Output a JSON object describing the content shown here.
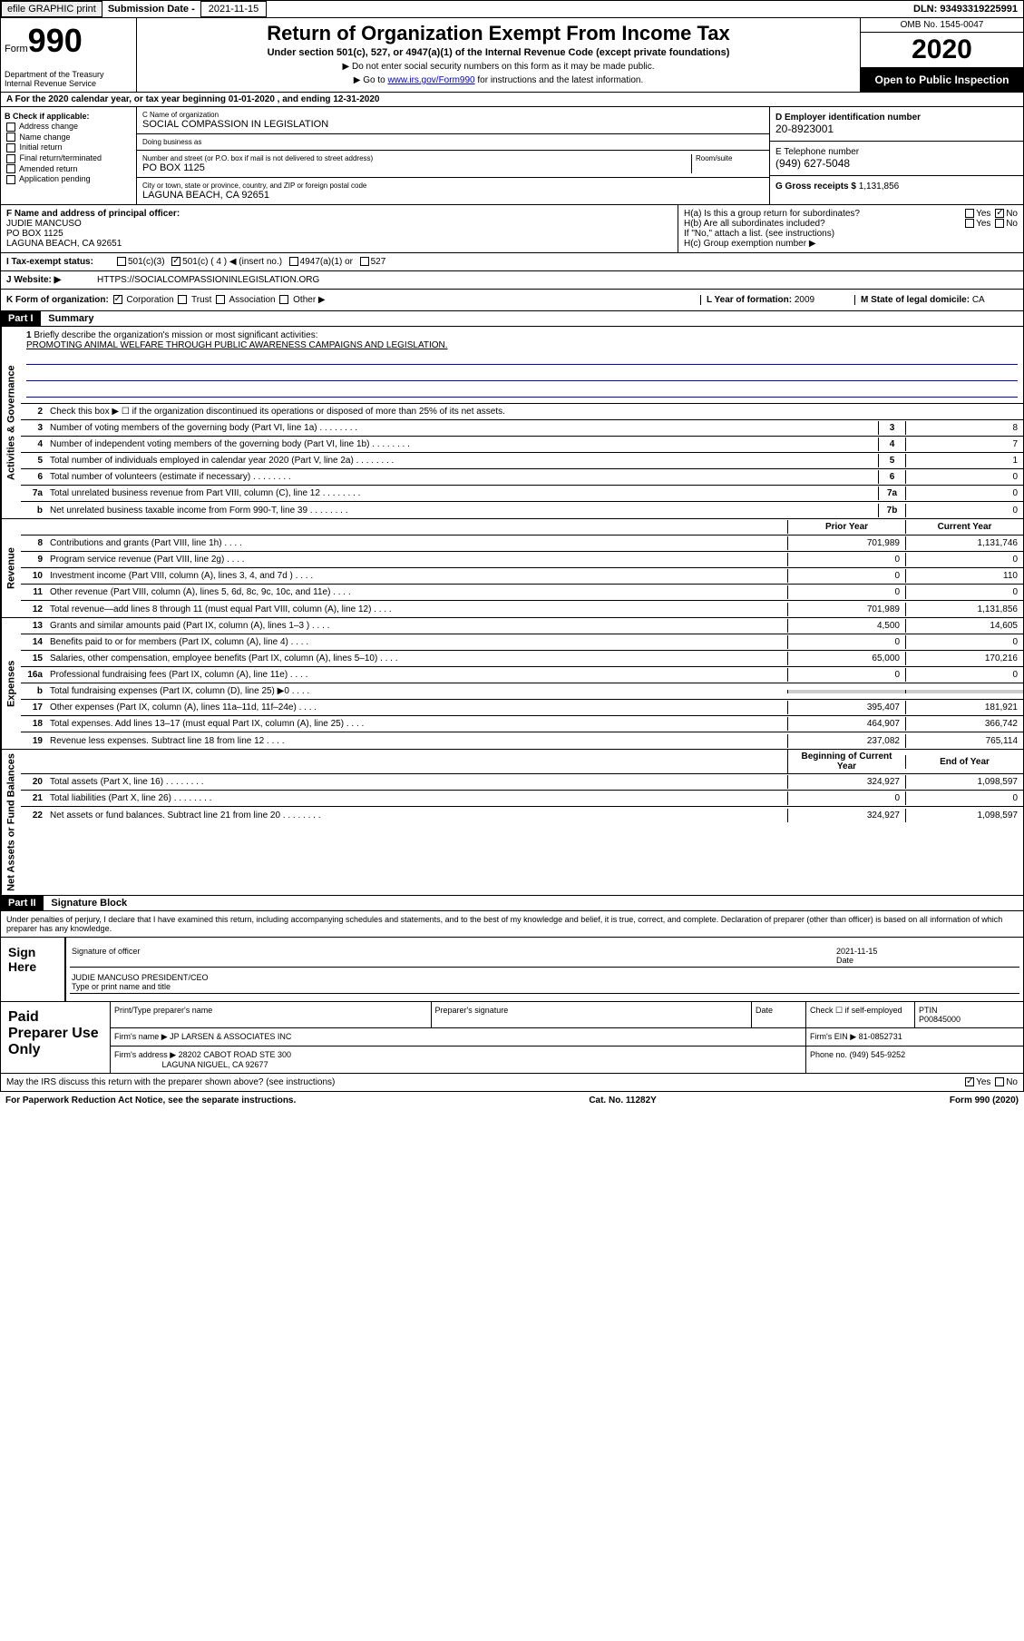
{
  "topbar": {
    "efile": "efile GRAPHIC print",
    "sub_label": "Submission Date - ",
    "sub_date": "2021-11-15",
    "dln": "DLN: 93493319225991"
  },
  "header": {
    "form_word": "Form",
    "form_no": "990",
    "dept": "Department of the Treasury\nInternal Revenue Service",
    "title": "Return of Organization Exempt From Income Tax",
    "subtitle": "Under section 501(c), 527, or 4947(a)(1) of the Internal Revenue Code (except private foundations)",
    "instr1": "Do not enter social security numbers on this form as it may be made public.",
    "instr2_pre": "Go to ",
    "instr2_link": "www.irs.gov/Form990",
    "instr2_post": " for instructions and the latest information.",
    "omb": "OMB No. 1545-0047",
    "year": "2020",
    "open": "Open to Public Inspection"
  },
  "section_a": "A For the 2020 calendar year, or tax year beginning 01-01-2020   , and ending 12-31-2020",
  "blockB": {
    "label": "B Check if applicable:",
    "items": [
      "Address change",
      "Name change",
      "Initial return",
      "Final return/terminated",
      "Amended return",
      "Application pending"
    ]
  },
  "blockC": {
    "name_label": "C Name of organization",
    "name": "SOCIAL COMPASSION IN LEGISLATION",
    "dba_label": "Doing business as",
    "addr_label": "Number and street (or P.O. box if mail is not delivered to street address)",
    "room_label": "Room/suite",
    "addr": "PO BOX 1125",
    "city_label": "City or town, state or province, country, and ZIP or foreign postal code",
    "city": "LAGUNA BEACH, CA  92651"
  },
  "blockD": {
    "label": "D Employer identification number",
    "val": "20-8923001"
  },
  "blockE": {
    "label": "E Telephone number",
    "val": "(949) 627-5048"
  },
  "blockG": {
    "label": "G Gross receipts $",
    "val": "1,131,856"
  },
  "blockF": {
    "label": "F Name and address of principal officer:",
    "name": "JUDIE MANCUSO",
    "addr1": "PO BOX 1125",
    "addr2": "LAGUNA BEACH, CA  92651"
  },
  "blockH": {
    "a": "H(a)  Is this a group return for subordinates?",
    "a_no": "No",
    "b": "H(b)  Are all subordinates included?",
    "b_note": "If \"No,\" attach a list. (see instructions)",
    "c": "H(c)  Group exemption number ▶"
  },
  "blockI": {
    "label": "I  Tax-exempt status:",
    "opts": [
      "501(c)(3)",
      "501(c) ( 4 ) ◀ (insert no.)",
      "4947(a)(1) or",
      "527"
    ]
  },
  "blockJ": {
    "label": "J  Website: ▶",
    "val": "HTTPS://SOCIALCOMPASSIONINLEGISLATION.ORG"
  },
  "blockK": {
    "label": "K Form of organization:",
    "opts": [
      "Corporation",
      "Trust",
      "Association",
      "Other ▶"
    ]
  },
  "blockL": {
    "label": "L Year of formation:",
    "val": "2009"
  },
  "blockM": {
    "label": "M State of legal domicile:",
    "val": "CA"
  },
  "part1": {
    "hdr": "Part I",
    "title": "Summary",
    "line1_label": "Briefly describe the organization's mission or most significant activities:",
    "line1_text": "PROMOTING ANIMAL WELFARE THROUGH PUBLIC AWARENESS CAMPAIGNS AND LEGISLATION.",
    "line2": "Check this box ▶ ☐ if the organization discontinued its operations or disposed of more than 25% of its net assets.",
    "gov_label": "Activities & Governance",
    "rev_label": "Revenue",
    "exp_label": "Expenses",
    "net_label": "Net Assets or Fund Balances",
    "gov_rows": [
      {
        "n": "3",
        "t": "Number of voting members of the governing body (Part VI, line 1a)",
        "b": "3",
        "v": "8"
      },
      {
        "n": "4",
        "t": "Number of independent voting members of the governing body (Part VI, line 1b)",
        "b": "4",
        "v": "7"
      },
      {
        "n": "5",
        "t": "Total number of individuals employed in calendar year 2020 (Part V, line 2a)",
        "b": "5",
        "v": "1"
      },
      {
        "n": "6",
        "t": "Total number of volunteers (estimate if necessary)",
        "b": "6",
        "v": "0"
      },
      {
        "n": "7a",
        "t": "Total unrelated business revenue from Part VIII, column (C), line 12",
        "b": "7a",
        "v": "0"
      },
      {
        "n": "b",
        "t": "Net unrelated business taxable income from Form 990-T, line 39",
        "b": "7b",
        "v": "0"
      }
    ],
    "col_prior": "Prior Year",
    "col_current": "Current Year",
    "rev_rows": [
      {
        "n": "8",
        "t": "Contributions and grants (Part VIII, line 1h)",
        "p": "701,989",
        "c": "1,131,746"
      },
      {
        "n": "9",
        "t": "Program service revenue (Part VIII, line 2g)",
        "p": "0",
        "c": "0"
      },
      {
        "n": "10",
        "t": "Investment income (Part VIII, column (A), lines 3, 4, and 7d )",
        "p": "0",
        "c": "110"
      },
      {
        "n": "11",
        "t": "Other revenue (Part VIII, column (A), lines 5, 6d, 8c, 9c, 10c, and 11e)",
        "p": "0",
        "c": "0"
      },
      {
        "n": "12",
        "t": "Total revenue—add lines 8 through 11 (must equal Part VIII, column (A), line 12)",
        "p": "701,989",
        "c": "1,131,856"
      }
    ],
    "exp_rows": [
      {
        "n": "13",
        "t": "Grants and similar amounts paid (Part IX, column (A), lines 1–3 )",
        "p": "4,500",
        "c": "14,605"
      },
      {
        "n": "14",
        "t": "Benefits paid to or for members (Part IX, column (A), line 4)",
        "p": "0",
        "c": "0"
      },
      {
        "n": "15",
        "t": "Salaries, other compensation, employee benefits (Part IX, column (A), lines 5–10)",
        "p": "65,000",
        "c": "170,216"
      },
      {
        "n": "16a",
        "t": "Professional fundraising fees (Part IX, column (A), line 11e)",
        "p": "0",
        "c": "0"
      },
      {
        "n": "b",
        "t": "Total fundraising expenses (Part IX, column (D), line 25) ▶0",
        "p": "",
        "c": "",
        "grey": true
      },
      {
        "n": "17",
        "t": "Other expenses (Part IX, column (A), lines 11a–11d, 11f–24e)",
        "p": "395,407",
        "c": "181,921"
      },
      {
        "n": "18",
        "t": "Total expenses. Add lines 13–17 (must equal Part IX, column (A), line 25)",
        "p": "464,907",
        "c": "366,742"
      },
      {
        "n": "19",
        "t": "Revenue less expenses. Subtract line 18 from line 12",
        "p": "237,082",
        "c": "765,114"
      }
    ],
    "col_begin": "Beginning of Current Year",
    "col_end": "End of Year",
    "net_rows": [
      {
        "n": "20",
        "t": "Total assets (Part X, line 16)",
        "p": "324,927",
        "c": "1,098,597"
      },
      {
        "n": "21",
        "t": "Total liabilities (Part X, line 26)",
        "p": "0",
        "c": "0"
      },
      {
        "n": "22",
        "t": "Net assets or fund balances. Subtract line 21 from line 20",
        "p": "324,927",
        "c": "1,098,597"
      }
    ]
  },
  "part2": {
    "hdr": "Part II",
    "title": "Signature Block",
    "perjury": "Under penalties of perjury, I declare that I have examined this return, including accompanying schedules and statements, and to the best of my knowledge and belief, it is true, correct, and complete. Declaration of preparer (other than officer) is based on all information of which preparer has any knowledge.",
    "sign_here": "Sign Here",
    "sig_officer": "Signature of officer",
    "date_label": "Date",
    "date_val": "2021-11-15",
    "officer_name": "JUDIE MANCUSO PRESIDENT/CEO",
    "type_label": "Type or print name and title",
    "paid": "Paid Preparer Use Only",
    "prep_name_label": "Print/Type preparer's name",
    "prep_sig_label": "Preparer's signature",
    "check_self": "Check ☐ if self-employed",
    "ptin_label": "PTIN",
    "ptin": "P00845000",
    "firm_name_label": "Firm's name    ▶",
    "firm_name": "JP LARSEN & ASSOCIATES INC",
    "firm_ein_label": "Firm's EIN ▶",
    "firm_ein": "81-0852731",
    "firm_addr_label": "Firm's address ▶",
    "firm_addr1": "28202 CABOT ROAD STE 300",
    "firm_addr2": "LAGUNA NIGUEL, CA  92677",
    "phone_label": "Phone no.",
    "phone": "(949) 545-9252",
    "discuss": "May the IRS discuss this return with the preparer shown above? (see instructions)"
  },
  "footer": {
    "left": "For Paperwork Reduction Act Notice, see the separate instructions.",
    "center": "Cat. No. 11282Y",
    "right": "Form 990 (2020)"
  },
  "yes": "Yes",
  "no": "No"
}
